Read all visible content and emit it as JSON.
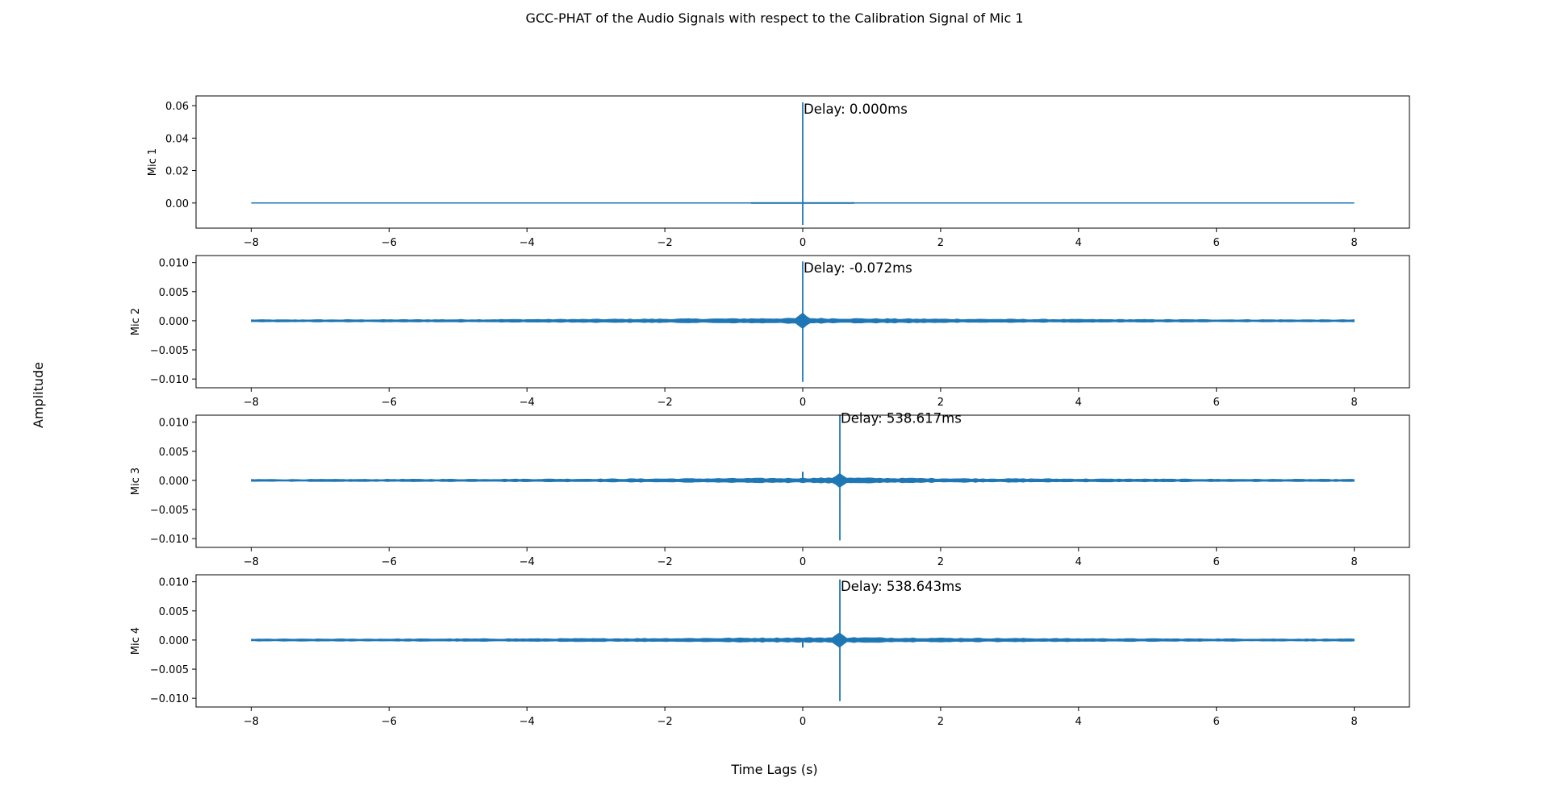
{
  "figure": {
    "suptitle": "GCC-PHAT of the Audio Signals with respect to the Calibration Signal of Mic 1",
    "supxlabel": "Time Lags (s)",
    "supylabel": "Amplitude",
    "line_color": "#1f77b4"
  },
  "chart_data": [
    {
      "type": "line",
      "ylabel": "Mic 1",
      "xlim": [
        -8.8,
        8.8
      ],
      "ylim": [
        -0.0155,
        0.066
      ],
      "xticks": [
        -8,
        -6,
        -4,
        -2,
        0,
        2,
        4,
        6,
        8
      ],
      "yticks": [
        0.0,
        0.02,
        0.04,
        0.06
      ],
      "ytick_labels": [
        "0.00",
        "0.02",
        "0.04",
        "0.06"
      ],
      "annotation": "Delay: 0.000ms",
      "annotation_xy": [
        0.0,
        0.062
      ],
      "signal": {
        "x_range": [
          -8,
          8
        ],
        "peak_lag": 0.0,
        "peak_max": 0.062,
        "peak_min": -0.0135,
        "noise_amplitude": 0.0,
        "secondary_peak_lag": null,
        "secondary_peak": 0.0
      }
    },
    {
      "type": "line",
      "ylabel": "Mic 2",
      "xlim": [
        -8.8,
        8.8
      ],
      "ylim": [
        -0.0115,
        0.0112
      ],
      "xticks": [
        -8,
        -6,
        -4,
        -2,
        0,
        2,
        4,
        6,
        8
      ],
      "yticks": [
        -0.01,
        -0.005,
        0.0,
        0.005,
        0.01
      ],
      "ytick_labels": [
        "−0.010",
        "−0.005",
        "0.000",
        "0.005",
        "0.010"
      ],
      "annotation": "Delay: -0.072ms",
      "annotation_xy": [
        -7.2e-05,
        0.0102
      ],
      "signal": {
        "x_range": [
          -8,
          8
        ],
        "peak_lag": -7.2e-05,
        "peak_max": 0.0102,
        "peak_min": -0.0105,
        "noise_amplitude": 0.0004,
        "secondary_peak_lag": null,
        "secondary_peak": 0.0
      }
    },
    {
      "type": "line",
      "ylabel": "Mic 3",
      "xlim": [
        -8.8,
        8.8
      ],
      "ylim": [
        -0.0115,
        0.0112
      ],
      "xticks": [
        -8,
        -6,
        -4,
        -2,
        0,
        2,
        4,
        6,
        8
      ],
      "yticks": [
        -0.01,
        -0.005,
        0.0,
        0.005,
        0.01
      ],
      "ytick_labels": [
        "−0.010",
        "−0.005",
        "0.000",
        "0.005",
        "0.010"
      ],
      "annotation": "Delay: 538.617ms",
      "annotation_xy": [
        0.538617,
        0.0118
      ],
      "signal": {
        "x_range": [
          -8,
          8
        ],
        "peak_lag": 0.538617,
        "peak_max": 0.0118,
        "peak_min": -0.0103,
        "noise_amplitude": 0.0004,
        "secondary_peak_lag": 0.0,
        "secondary_peak": 0.0015
      }
    },
    {
      "type": "line",
      "ylabel": "Mic 4",
      "xlim": [
        -8.8,
        8.8
      ],
      "ylim": [
        -0.0115,
        0.0112
      ],
      "xticks": [
        -8,
        -6,
        -4,
        -2,
        0,
        2,
        4,
        6,
        8
      ],
      "yticks": [
        -0.01,
        -0.005,
        0.0,
        0.005,
        0.01
      ],
      "ytick_labels": [
        "−0.010",
        "−0.005",
        "0.000",
        "0.005",
        "0.010"
      ],
      "annotation": "Delay: 538.643ms",
      "annotation_xy": [
        0.538643,
        0.0104
      ],
      "signal": {
        "x_range": [
          -8,
          8
        ],
        "peak_lag": 0.538643,
        "peak_max": 0.0104,
        "peak_min": -0.0105,
        "noise_amplitude": 0.0004,
        "secondary_peak_lag": 0.0,
        "secondary_peak": -0.0013
      }
    }
  ]
}
